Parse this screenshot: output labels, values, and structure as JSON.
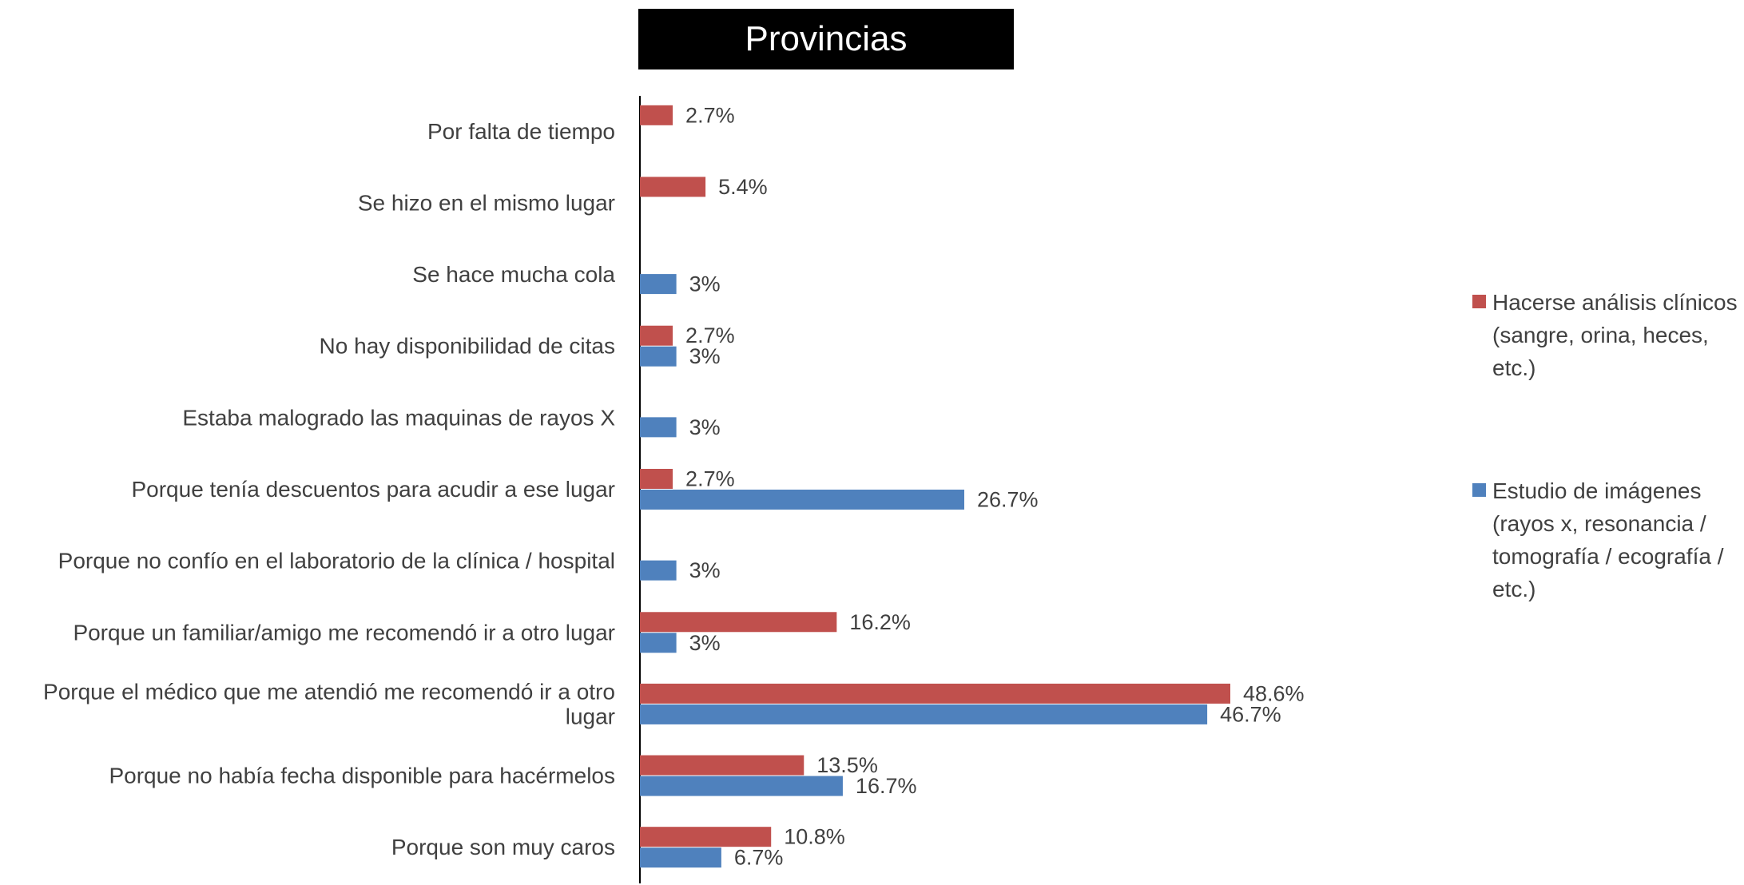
{
  "chart_data": {
    "type": "bar",
    "orientation": "horizontal",
    "title": "Provincias",
    "xlim": [
      0,
      48.6
    ],
    "grid": false,
    "legend_position": "right",
    "categories": [
      "Por falta de tiempo",
      "Se hizo en el mismo lugar",
      "Se hace mucha cola",
      "No hay disponibilidad de citas",
      "Estaba malogrado las maquinas de rayos X",
      "Porque tenía descuentos para acudir a ese lugar",
      "Porque no confío en el laboratorio de la clínica / hospital",
      "Porque un familiar/amigo me recomendó ir a otro lugar",
      "Porque el médico que me atendió me recomendó ir a otro lugar",
      "Porque no había fecha disponible para hacérmelos",
      "Porque son muy caros"
    ],
    "category_lines": [
      [
        "Por falta de tiempo"
      ],
      [
        "Se hizo en el mismo lugar"
      ],
      [
        "Se hace mucha cola"
      ],
      [
        "No hay disponibilidad de citas"
      ],
      [
        "Estaba malogrado las maquinas de rayos X"
      ],
      [
        "Porque tenía descuentos para acudir a ese lugar"
      ],
      [
        "Porque no confío en el laboratorio de la clínica / hospital"
      ],
      [
        "Porque un familiar/amigo me recomendó ir a otro lugar"
      ],
      [
        "Porque el médico que me atendió me recomendó ir a otro",
        "lugar"
      ],
      [
        "Porque no había fecha disponible para hacérmelos"
      ],
      [
        "Porque son muy caros"
      ]
    ],
    "series": [
      {
        "name": "Hacerse análisis clínicos (sangre, orina, heces, etc.)",
        "name_lines": [
          "Hacerse análisis clínicos",
          "(sangre, orina, heces,",
          "etc.)"
        ],
        "color": "#C0504D",
        "values": [
          2.7,
          5.4,
          null,
          2.7,
          null,
          2.7,
          null,
          16.2,
          48.6,
          13.5,
          10.8
        ],
        "labels": [
          "2.7%",
          "5.4%",
          null,
          "2.7%",
          null,
          "2.7%",
          null,
          "16.2%",
          "48.6%",
          "13.5%",
          "10.8%"
        ]
      },
      {
        "name": "Estudio de imágenes (rayos x, resonancia / tomografía / ecografía / etc.)",
        "name_lines": [
          "Estudio de imágenes",
          "(rayos x, resonancia /",
          "tomografía / ecografía /",
          "etc.)"
        ],
        "color": "#4F81BD",
        "values": [
          null,
          null,
          3,
          3,
          3,
          26.7,
          3,
          3,
          46.7,
          16.7,
          6.7
        ],
        "labels": [
          null,
          null,
          "3%",
          "3%",
          "3%",
          "26.7%",
          "3%",
          "3%",
          "46.7%",
          "16.7%",
          "6.7%"
        ]
      }
    ]
  }
}
